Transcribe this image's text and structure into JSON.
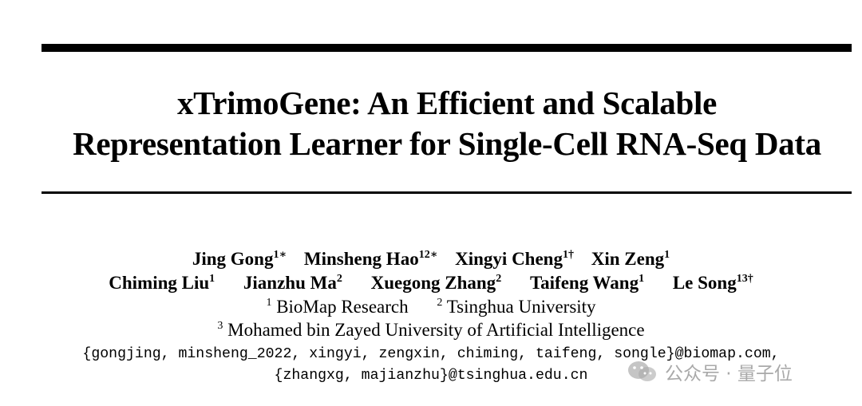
{
  "title": {
    "line1": "xTrimoGene: An Efficient and Scalable",
    "line2": "Representation Learner for Single-Cell RNA-Seq Data"
  },
  "authors": {
    "row1": [
      {
        "name": "Jing Gong",
        "sup": "1∗"
      },
      {
        "name": "Minsheng Hao",
        "sup": "12∗"
      },
      {
        "name": "Xingyi Cheng",
        "sup": "1†"
      },
      {
        "name": "Xin Zeng",
        "sup": "1"
      }
    ],
    "row2": [
      {
        "name": "Chiming Liu",
        "sup": "1"
      },
      {
        "name": "Jianzhu Ma",
        "sup": "2"
      },
      {
        "name": "Xuegong Zhang",
        "sup": "2"
      },
      {
        "name": "Taifeng Wang",
        "sup": "1"
      },
      {
        "name": "Le Song",
        "sup": "13†"
      }
    ]
  },
  "affiliations": {
    "a1": {
      "sup": "1",
      "name": "BioMap Research"
    },
    "a2": {
      "sup": "2",
      "name": "Tsinghua University"
    },
    "a3": {
      "sup": "3",
      "name": "Mohamed bin Zayed University of Artificial Intelligence"
    }
  },
  "emails": {
    "line1": "{gongjing, minsheng_2022, xingyi, zengxin, chiming, taifeng, songle}@biomap.com,",
    "line2": "{zhangxg, majianzhu}@tsinghua.edu.cn"
  },
  "watermark": {
    "text": "公众号 · 量子位",
    "icon": "wechat-icon",
    "color": "#8c8c8c"
  }
}
